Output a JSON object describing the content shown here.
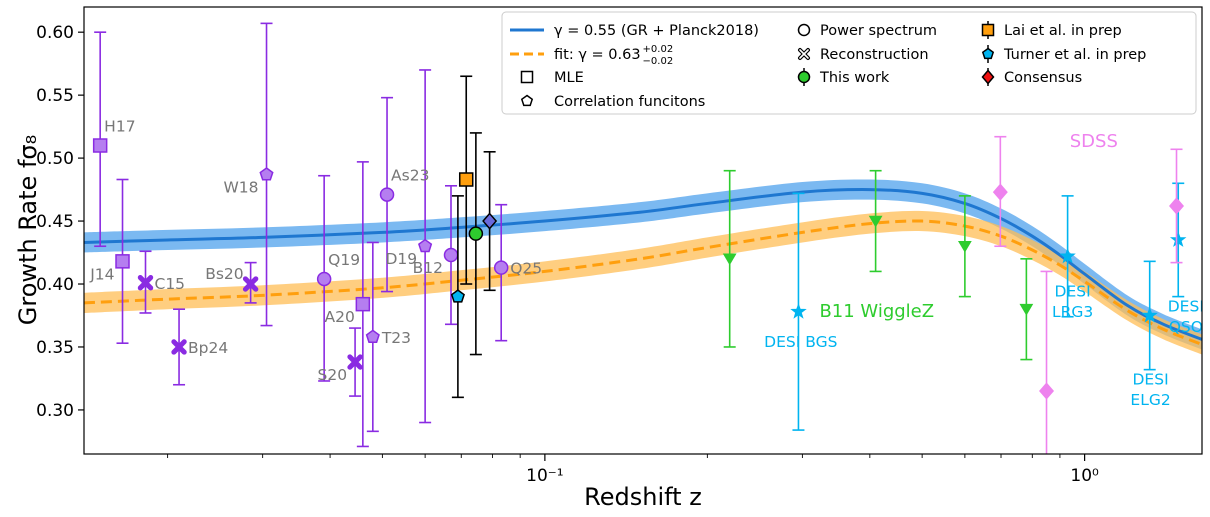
{
  "chart_data": {
    "type": "scatter",
    "title": "",
    "xlabel": "Redshift z",
    "ylabel": "Growth Rate fσ₈",
    "xscale": "log",
    "xlim": [
      0.014,
      1.65
    ],
    "ylim": [
      0.265,
      0.62
    ],
    "grid": false,
    "x_ticks": [
      {
        "value": 0.1,
        "label": "10⁻¹"
      },
      {
        "value": 1.0,
        "label": "10⁰"
      }
    ],
    "y_ticks": [
      {
        "value": 0.3,
        "label": "0.30"
      },
      {
        "value": 0.35,
        "label": "0.35"
      },
      {
        "value": 0.4,
        "label": "0.40"
      },
      {
        "value": 0.45,
        "label": "0.45"
      },
      {
        "value": 0.5,
        "label": "0.50"
      },
      {
        "value": 0.55,
        "label": "0.55"
      },
      {
        "value": 0.6,
        "label": "0.60"
      }
    ],
    "colors": {
      "gr_line": "#1f77d0",
      "gr_band": "#5aa8ee",
      "fit_line": "#ff9f0e",
      "fit_band": "#ffbe55",
      "compilation": "#8a2be2",
      "this_work": "#000000",
      "wigglez": "#2ecc2e",
      "desi": "#00b4f0",
      "sdss": "#ee82ee",
      "label_grey": "#777777"
    },
    "curves": [
      {
        "name": "γ = 0.55 (GR + Planck2018)",
        "style": "solid",
        "z": [
          0.014,
          0.02,
          0.03,
          0.05,
          0.07,
          0.1,
          0.15,
          0.2,
          0.3,
          0.4,
          0.5,
          0.6,
          0.7,
          0.8,
          0.9,
          1.0,
          1.2,
          1.4,
          1.65
        ],
        "value": [
          0.433,
          0.435,
          0.437,
          0.441,
          0.445,
          0.45,
          0.457,
          0.464,
          0.473,
          0.475,
          0.472,
          0.464,
          0.452,
          0.438,
          0.423,
          0.408,
          0.383,
          0.368,
          0.356
        ],
        "band": 0.008
      },
      {
        "name": "fit: γ = 0.63 (+0.02 / −0.02)",
        "style": "dashed",
        "z": [
          0.014,
          0.02,
          0.03,
          0.05,
          0.07,
          0.1,
          0.15,
          0.2,
          0.3,
          0.4,
          0.5,
          0.6,
          0.7,
          0.8,
          0.9,
          1.0,
          1.2,
          1.4,
          1.65
        ],
        "value": [
          0.385,
          0.388,
          0.391,
          0.397,
          0.403,
          0.41,
          0.42,
          0.429,
          0.441,
          0.448,
          0.45,
          0.446,
          0.438,
          0.427,
          0.415,
          0.402,
          0.379,
          0.364,
          0.352
        ],
        "band": 0.008
      }
    ],
    "points": [
      {
        "label": "H17",
        "z": 0.015,
        "value": 0.51,
        "lo": 0.43,
        "hi": 0.6,
        "marker": "square",
        "color": "compilation",
        "label_pos": "above-right"
      },
      {
        "label": "J14",
        "z": 0.0165,
        "value": 0.418,
        "lo": 0.353,
        "hi": 0.483,
        "marker": "square",
        "color": "compilation",
        "label_pos": "below-left"
      },
      {
        "label": "C15",
        "z": 0.0182,
        "value": 0.401,
        "lo": 0.377,
        "hi": 0.426,
        "marker": "cross",
        "color": "compilation",
        "label_pos": "right"
      },
      {
        "label": "Bp24",
        "z": 0.021,
        "value": 0.35,
        "lo": 0.32,
        "hi": 0.38,
        "marker": "cross",
        "color": "compilation",
        "label_pos": "right"
      },
      {
        "label": "Bs20",
        "z": 0.0285,
        "value": 0.4,
        "lo": 0.385,
        "hi": 0.417,
        "marker": "cross",
        "color": "compilation",
        "label_pos": "left"
      },
      {
        "label": "W18",
        "z": 0.0305,
        "value": 0.487,
        "lo": 0.367,
        "hi": 0.607,
        "marker": "pentagon",
        "color": "compilation",
        "label_pos": "below-left"
      },
      {
        "label": "Q19",
        "z": 0.039,
        "value": 0.404,
        "lo": 0.323,
        "hi": 0.486,
        "marker": "circle",
        "color": "compilation",
        "label_pos": "above-right"
      },
      {
        "label": "S20",
        "z": 0.0445,
        "value": 0.338,
        "lo": 0.311,
        "hi": 0.365,
        "marker": "cross",
        "color": "compilation",
        "label_pos": "below-left"
      },
      {
        "label": "A20",
        "z": 0.046,
        "value": 0.384,
        "lo": 0.271,
        "hi": 0.497,
        "marker": "square",
        "color": "compilation",
        "label_pos": "below-left"
      },
      {
        "label": "T23",
        "z": 0.048,
        "value": 0.358,
        "lo": 0.283,
        "hi": 0.433,
        "marker": "pentagon",
        "color": "compilation",
        "label_pos": "right"
      },
      {
        "label": "As23",
        "z": 0.051,
        "value": 0.471,
        "lo": 0.394,
        "hi": 0.548,
        "marker": "circle",
        "color": "compilation",
        "label_pos": "above-right"
      },
      {
        "label": "D19",
        "z": 0.06,
        "value": 0.43,
        "lo": 0.29,
        "hi": 0.57,
        "marker": "pentagon",
        "color": "compilation",
        "label_pos": "below-left"
      },
      {
        "label": "B12",
        "z": 0.067,
        "value": 0.423,
        "lo": 0.368,
        "hi": 0.478,
        "marker": "circle",
        "color": "compilation",
        "label_pos": "below-left"
      },
      {
        "label": "Q25",
        "z": 0.083,
        "value": 0.413,
        "lo": 0.355,
        "hi": 0.463,
        "marker": "circle",
        "color": "compilation",
        "label_pos": "right"
      },
      {
        "label": "",
        "z": 0.069,
        "value": 0.39,
        "lo": 0.31,
        "hi": 0.47,
        "marker": "pentagon",
        "color": "this_work",
        "fill": "#00b4f0",
        "label_pos": "none"
      },
      {
        "label": "",
        "z": 0.0715,
        "value": 0.483,
        "lo": 0.4,
        "hi": 0.565,
        "marker": "square",
        "color": "this_work",
        "fill": "#ff9f0e",
        "label_pos": "none"
      },
      {
        "label": "",
        "z": 0.0745,
        "value": 0.44,
        "lo": 0.344,
        "hi": 0.52,
        "marker": "circle",
        "color": "this_work",
        "fill": "#2ecc2e",
        "label_pos": "none"
      },
      {
        "label": "",
        "z": 0.079,
        "value": 0.45,
        "lo": 0.395,
        "hi": 0.505,
        "marker": "diamond",
        "color": "this_work",
        "fill": "#6a6adc",
        "label_pos": "none"
      },
      {
        "label": "",
        "z": 0.22,
        "value": 0.42,
        "lo": 0.35,
        "hi": 0.49,
        "marker": "triangle",
        "color": "wigglez",
        "label_pos": "none"
      },
      {
        "label": "",
        "z": 0.41,
        "value": 0.45,
        "lo": 0.41,
        "hi": 0.49,
        "marker": "triangle",
        "color": "wigglez",
        "label_pos": "none"
      },
      {
        "label": "",
        "z": 0.6,
        "value": 0.43,
        "lo": 0.39,
        "hi": 0.47,
        "marker": "triangle",
        "color": "wigglez",
        "label_pos": "none"
      },
      {
        "label": "",
        "z": 0.78,
        "value": 0.38,
        "lo": 0.34,
        "hi": 0.42,
        "marker": "triangle",
        "color": "wigglez",
        "label_pos": "none"
      },
      {
        "label": "",
        "z": 0.295,
        "value": 0.378,
        "lo": 0.284,
        "hi": 0.472,
        "marker": "star",
        "color": "desi",
        "label_pos": "none"
      },
      {
        "label": "",
        "z": 0.93,
        "value": 0.422,
        "lo": 0.374,
        "hi": 0.47,
        "marker": "star",
        "color": "desi",
        "label_pos": "none"
      },
      {
        "label": "",
        "z": 1.32,
        "value": 0.375,
        "lo": 0.332,
        "hi": 0.418,
        "marker": "star",
        "color": "desi",
        "label_pos": "none"
      },
      {
        "label": "",
        "z": 1.491,
        "value": 0.435,
        "lo": 0.39,
        "hi": 0.48,
        "marker": "star",
        "color": "desi",
        "label_pos": "none"
      },
      {
        "label": "",
        "z": 0.698,
        "value": 0.473,
        "lo": 0.43,
        "hi": 0.517,
        "marker": "diamond",
        "color": "sdss",
        "label_pos": "none"
      },
      {
        "label": "",
        "z": 0.85,
        "value": 0.315,
        "lo": 0.22,
        "hi": 0.41,
        "marker": "diamond",
        "color": "sdss",
        "label_pos": "none"
      },
      {
        "label": "",
        "z": 1.48,
        "value": 0.462,
        "lo": 0.417,
        "hi": 0.507,
        "marker": "diamond",
        "color": "sdss",
        "label_pos": "none"
      }
    ],
    "annotations": [
      {
        "text": "SDSS",
        "z": 1.04,
        "value": 0.509,
        "color": "sdss",
        "size": "large"
      },
      {
        "text": "B11 WiggleZ",
        "z": 0.412,
        "value": 0.374,
        "color": "wigglez",
        "size": "large"
      },
      {
        "text": "DESI BGS",
        "z": 0.298,
        "value": 0.35,
        "color": "desi",
        "size": "small"
      },
      {
        "text": "DESI",
        "z": 0.95,
        "value": 0.39,
        "color": "desi",
        "size": "small"
      },
      {
        "text": "LRG3",
        "z": 0.95,
        "value": 0.374,
        "color": "desi",
        "size": "small"
      },
      {
        "text": "DESI",
        "z": 1.325,
        "value": 0.32,
        "color": "desi",
        "size": "small"
      },
      {
        "text": "ELG2",
        "z": 1.325,
        "value": 0.304,
        "color": "desi",
        "size": "small"
      },
      {
        "text": "DESI",
        "z": 1.54,
        "value": 0.378,
        "color": "desi",
        "size": "small"
      },
      {
        "text": "QSO",
        "z": 1.54,
        "value": 0.362,
        "color": "desi",
        "size": "small"
      }
    ],
    "legend": {
      "position": "top-right",
      "entries": [
        {
          "text": "γ = 0.55 (GR + Planck2018)",
          "symbol": "line-solid",
          "color": "#1f77d0"
        },
        {
          "text": "fit: γ = 0.63",
          "sup": "+0.02",
          "sub": "−0.02",
          "symbol": "line-dashed",
          "color": "#ff9f0e"
        },
        {
          "text": "MLE",
          "symbol": "square-open"
        },
        {
          "text": "Correlation funcitons",
          "symbol": "pentagon-open"
        },
        {
          "text": "Power spectrum",
          "symbol": "circle-open"
        },
        {
          "text": "Reconstruction",
          "symbol": "cross-open"
        },
        {
          "text": "This work",
          "symbol": "circle-green"
        },
        {
          "text": "Lai et al. in prep",
          "symbol": "square-orange"
        },
        {
          "text": "Turner et al. in prep",
          "symbol": "pentagon-blue"
        },
        {
          "text": "Consensus",
          "symbol": "diamond-red"
        }
      ]
    }
  }
}
